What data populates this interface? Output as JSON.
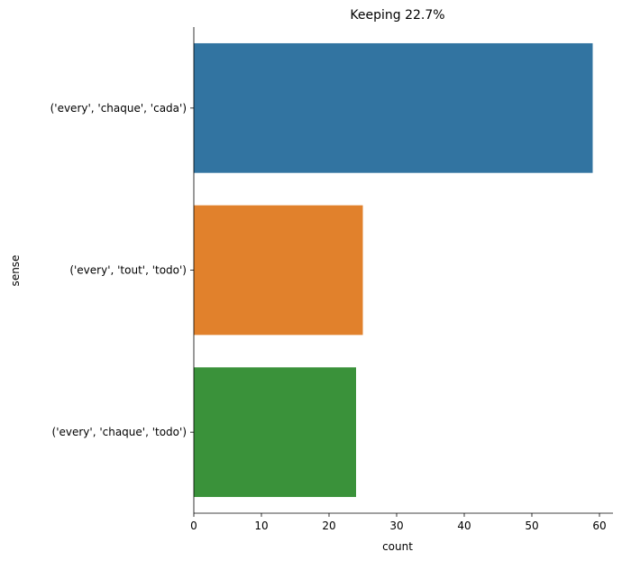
{
  "chart_data": {
    "type": "bar",
    "orientation": "horizontal",
    "title": "Keeping 22.7%",
    "xlabel": "count",
    "ylabel": "sense",
    "categories": [
      "('every', 'chaque', 'cada')",
      "('every', 'tout', 'todo')",
      "('every', 'chaque', 'todo')"
    ],
    "values": [
      59,
      25,
      24
    ],
    "colors": [
      "#3274a1",
      "#e1812c",
      "#3a923a"
    ],
    "xlim": [
      0,
      62
    ],
    "xticks": [
      0,
      10,
      20,
      30,
      40,
      50,
      60
    ],
    "grid": false,
    "legend": "none"
  }
}
